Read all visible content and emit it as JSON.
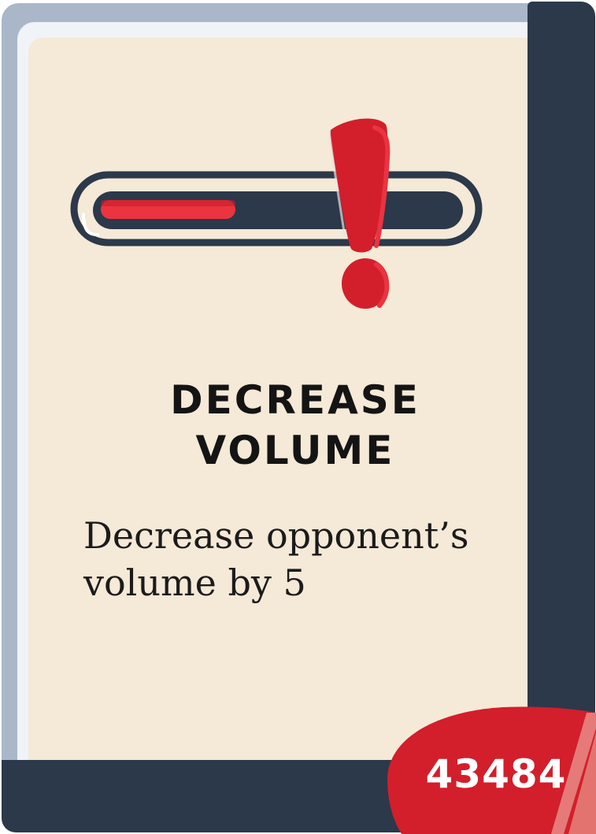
{
  "card": {
    "title_line1": "DECREASE",
    "title_line2": "VOLUME",
    "description": "Decrease opponent’s volume by 5",
    "number": "43484"
  },
  "volume_meter": {
    "level": 0.38,
    "icon": "exclamation-mark-icon"
  },
  "colors": {
    "parchment": "#f5e9d7",
    "frame_navy": "#2b394a",
    "frame_blue": "#a9b7c9",
    "accent_red": "#d21f2b",
    "meter_red": "#ec3340"
  }
}
